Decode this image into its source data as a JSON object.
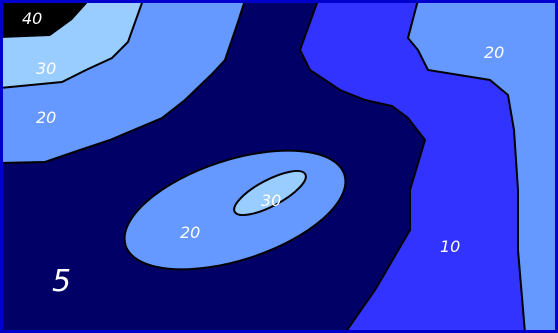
{
  "chart_data": {
    "type": "contour",
    "levels": [
      5,
      10,
      20,
      30,
      40
    ],
    "level_colors": {
      "5": "#000066",
      "10": "#3333ff",
      "20": "#6699ff",
      "30": "#99ccff",
      "40": "#000000"
    },
    "border_color": "#0000cc",
    "labels": [
      "40",
      "30",
      "20",
      "30",
      "20",
      "20",
      "10",
      "5"
    ]
  }
}
